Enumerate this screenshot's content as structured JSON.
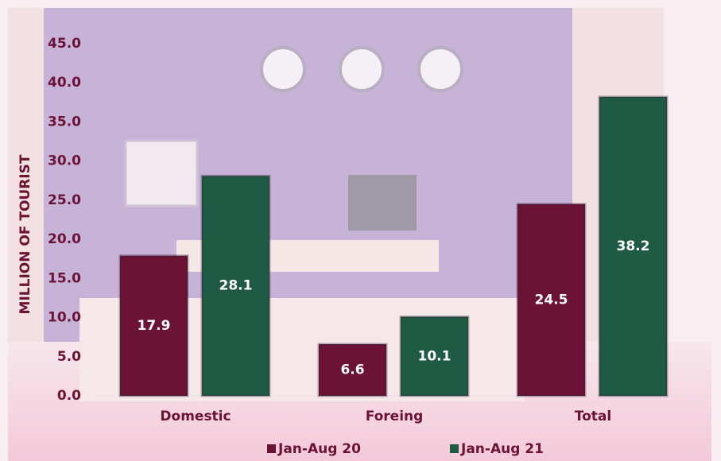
{
  "chart_data": {
    "type": "bar",
    "y_axis_label": "MILLION OF TOURIST",
    "categories": [
      "Domestic",
      "Foreing",
      "Total"
    ],
    "series": [
      {
        "name": "Jan-Aug 20",
        "color": "#6b1235",
        "values": [
          17.9,
          6.6,
          24.5
        ]
      },
      {
        "name": "Jan-Aug 21",
        "color": "#1f5a45",
        "values": [
          28.1,
          10.1,
          38.2
        ]
      }
    ],
    "ylim": [
      0,
      45
    ],
    "yticks": [
      {
        "value": 0,
        "label": "0.0"
      },
      {
        "value": 5,
        "label": "5.0"
      },
      {
        "value": 10,
        "label": "10.0"
      },
      {
        "value": 15,
        "label": "15.0"
      },
      {
        "value": 20,
        "label": "20.0"
      },
      {
        "value": 25,
        "label": "25.0"
      },
      {
        "value": 30,
        "label": "30.0"
      },
      {
        "value": 35,
        "label": "35.0"
      },
      {
        "value": 40,
        "label": "40.0"
      },
      {
        "value": 45,
        "label": "45.0"
      }
    ],
    "legend": "bottom"
  }
}
